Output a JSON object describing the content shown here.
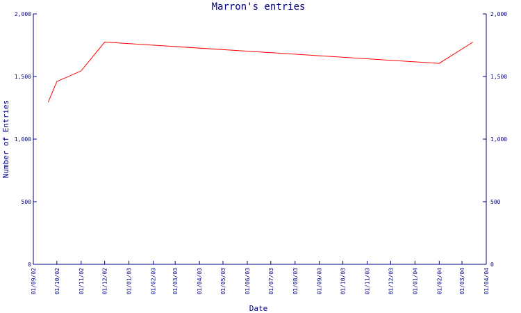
{
  "chart_data": {
    "type": "line",
    "title": "Marron's entries",
    "xlabel": "Date",
    "ylabel": "Number of Entries",
    "ylim": [
      0,
      2000
    ],
    "y_ticks": [
      {
        "value": 0,
        "label": "0"
      },
      {
        "value": 500,
        "label": "500"
      },
      {
        "value": 1000,
        "label": "1,000"
      },
      {
        "value": 1500,
        "label": "1,500"
      },
      {
        "value": 2000,
        "label": "2,000"
      }
    ],
    "x_ticks": [
      "01/09/02",
      "01/10/02",
      "01/11/02",
      "01/12/02",
      "01/01/03",
      "01/02/03",
      "01/03/03",
      "01/04/03",
      "01/05/03",
      "01/06/03",
      "01/07/03",
      "01/08/03",
      "01/09/03",
      "01/10/03",
      "01/11/03",
      "01/12/03",
      "01/01/04",
      "01/02/04",
      "01/03/04",
      "01/04/04"
    ],
    "series": [
      {
        "color": "#ff0000",
        "points": [
          {
            "x": "2002-09-20",
            "y": 1295
          },
          {
            "x": "2002-10-01",
            "y": 1460
          },
          {
            "x": "2002-11-01",
            "y": 1545
          },
          {
            "x": "2002-12-01",
            "y": 1775
          },
          {
            "x": "2004-02-01",
            "y": 1605
          },
          {
            "x": "2004-03-15",
            "y": 1775
          }
        ]
      }
    ],
    "grid": false,
    "legend": "none"
  }
}
